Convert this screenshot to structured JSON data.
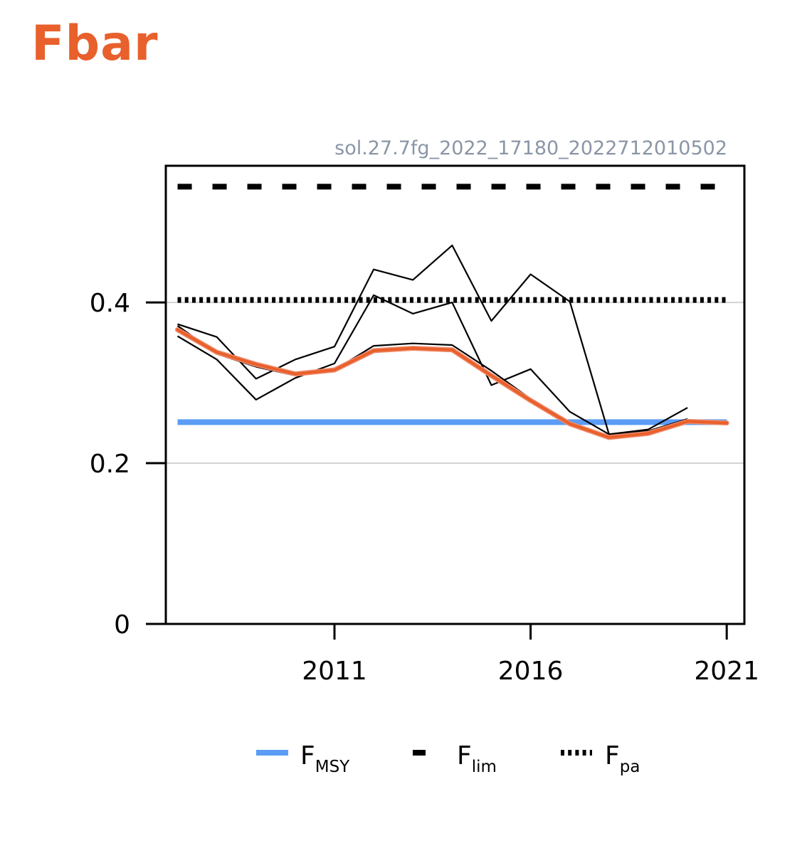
{
  "title": "Fbar",
  "chart_data": {
    "type": "line",
    "title": "Fbar",
    "source_label": "sol.27.7fg_2022_17180_2022712010502",
    "xlabel": "",
    "ylabel": "",
    "xlim": [
      2006.7,
      2021.45
    ],
    "ylim": [
      0,
      0.57
    ],
    "x_ticks": [
      2011,
      2016,
      2021
    ],
    "x_tick_labels": [
      "2011",
      "2016",
      "2021"
    ],
    "y_ticks": [
      0,
      0.2,
      0.4
    ],
    "y_tick_labels": [
      "0",
      "0.2",
      "0.4"
    ],
    "grid": "horizontal at y ticks",
    "reference_lines": [
      {
        "name": "FMSY",
        "value": 0.251,
        "style": "solid",
        "color": "#5b9cf5"
      },
      {
        "name": "Flim",
        "value": 0.544,
        "style": "dashed",
        "color": "#000000"
      },
      {
        "name": "Fpa",
        "value": 0.403,
        "style": "dotted",
        "color": "#000000"
      }
    ],
    "series": [
      {
        "role": "confidence-upper",
        "color": "#000000",
        "x": [
          2007,
          2008,
          2009,
          2010,
          2011,
          2012,
          2013,
          2014,
          2015,
          2016,
          2017,
          2018,
          2019,
          2020
        ],
        "y": [
          0.373,
          0.357,
          0.305,
          0.329,
          0.345,
          0.441,
          0.428,
          0.471,
          0.377,
          0.435,
          0.401,
          0.236,
          0.242,
          0.269
        ]
      },
      {
        "role": "confidence-lower",
        "color": "#000000",
        "x": [
          2007,
          2008,
          2009,
          2010,
          2011,
          2012,
          2013,
          2014,
          2015,
          2016,
          2017,
          2018,
          2019,
          2020
        ],
        "y": [
          0.358,
          0.329,
          0.279,
          0.306,
          0.324,
          0.409,
          0.386,
          0.4,
          0.297,
          0.317,
          0.264,
          0.236,
          0.24,
          0.255
        ]
      },
      {
        "role": "estimate-inner",
        "color": "#000000",
        "x": [
          2007,
          2008,
          2009,
          2010,
          2011,
          2012,
          2013,
          2014,
          2015,
          2016,
          2017,
          2018,
          2019,
          2020
        ],
        "y": [
          0.371,
          0.336,
          0.32,
          0.309,
          0.316,
          0.346,
          0.349,
          0.347,
          0.315,
          0.28,
          0.248,
          0.234,
          0.238,
          0.253
        ]
      },
      {
        "role": "estimate",
        "color": "#e8602c",
        "x": [
          2007,
          2008,
          2009,
          2010,
          2011,
          2012,
          2013,
          2014,
          2015,
          2016,
          2017,
          2018,
          2019,
          2020,
          2021
        ],
        "y": [
          0.366,
          0.338,
          0.323,
          0.311,
          0.316,
          0.34,
          0.343,
          0.341,
          0.309,
          0.278,
          0.249,
          0.232,
          0.237,
          0.252,
          0.25
        ]
      }
    ],
    "legend": {
      "placement": "bottom-center",
      "entries": [
        {
          "main": "F",
          "sub": "MSY",
          "style": "solid",
          "color": "#5b9cf5"
        },
        {
          "main": "F",
          "sub": "lim",
          "style": "dashed",
          "color": "#000000"
        },
        {
          "main": "F",
          "sub": "pa",
          "style": "dotted",
          "color": "#000000"
        }
      ]
    }
  }
}
